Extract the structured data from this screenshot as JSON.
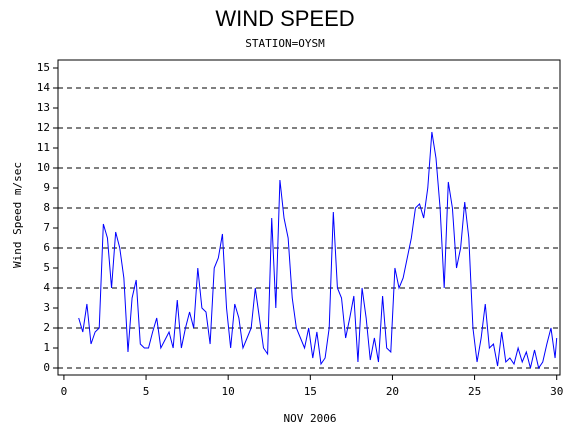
{
  "chart_data": {
    "type": "line",
    "title": "WIND SPEED",
    "subtitle": "STATION=OYSM",
    "y_label": "Wind Speed m/sec",
    "x_label": "NOV 2006",
    "x": [
      0.9,
      1.15,
      1.4,
      1.65,
      1.9,
      2.15,
      2.4,
      2.65,
      2.9,
      3.15,
      3.4,
      3.65,
      3.9,
      4.15,
      4.4,
      4.65,
      4.9,
      5.15,
      5.4,
      5.65,
      5.9,
      6.15,
      6.4,
      6.65,
      6.9,
      7.15,
      7.4,
      7.65,
      7.9,
      8.15,
      8.4,
      8.65,
      8.9,
      9.15,
      9.4,
      9.65,
      9.9,
      10.15,
      10.4,
      10.65,
      10.9,
      11.15,
      11.4,
      11.65,
      11.9,
      12.15,
      12.4,
      12.65,
      12.9,
      13.15,
      13.4,
      13.65,
      13.9,
      14.15,
      14.4,
      14.65,
      14.9,
      15.15,
      15.4,
      15.65,
      15.9,
      16.15,
      16.4,
      16.65,
      16.9,
      17.15,
      17.4,
      17.65,
      17.9,
      18.15,
      18.4,
      18.65,
      18.9,
      19.15,
      19.4,
      19.65,
      19.9,
      20.15,
      20.4,
      20.65,
      20.9,
      21.15,
      21.4,
      21.65,
      21.9,
      22.15,
      22.4,
      22.65,
      22.9,
      23.15,
      23.4,
      23.65,
      23.9,
      24.15,
      24.4,
      24.65,
      24.9,
      25.15,
      25.4,
      25.65,
      25.9,
      26.15,
      26.4,
      26.65,
      26.9,
      27.15,
      27.4,
      27.65,
      27.9,
      28.15,
      28.4,
      28.65,
      28.9,
      29.15,
      29.4,
      29.65,
      29.9,
      30.0
    ],
    "series": [
      {
        "color": "#0000ff",
        "values": [
          2.5,
          1.8,
          3.2,
          1.2,
          1.8,
          2.0,
          7.2,
          6.5,
          4.0,
          6.8,
          6.0,
          4.5,
          0.8,
          3.5,
          4.4,
          1.2,
          1.0,
          1.0,
          1.8,
          2.5,
          1.0,
          1.4,
          1.8,
          1.0,
          3.4,
          1.0,
          2.0,
          2.8,
          2.0,
          5.0,
          3.0,
          2.8,
          1.2,
          5.0,
          5.5,
          6.7,
          3.0,
          1.0,
          3.2,
          2.5,
          1.0,
          1.5,
          2.0,
          4.0,
          2.5,
          1.0,
          0.7,
          7.5,
          3.0,
          9.4,
          7.5,
          6.5,
          3.5,
          2.0,
          1.5,
          1.0,
          2.0,
          0.5,
          1.8,
          0.2,
          0.5,
          2.0,
          7.8,
          4.0,
          3.5,
          1.5,
          2.5,
          3.6,
          0.3,
          4.0,
          2.5,
          0.4,
          1.5,
          0.3,
          3.6,
          1.0,
          0.8,
          5.0,
          4.0,
          4.5,
          5.5,
          6.5,
          8.0,
          8.2,
          7.5,
          9.0,
          11.8,
          10.5,
          8.0,
          4.0,
          9.3,
          8.0,
          5.0,
          6.0,
          8.3,
          6.5,
          2.0,
          0.3,
          1.5,
          3.2,
          1.0,
          1.2,
          0.1,
          1.8,
          0.3,
          0.5,
          0.2,
          1.0,
          0.3,
          0.8,
          0.0,
          0.9,
          0.0,
          0.3,
          1.2,
          2.0,
          0.5,
          1.5
        ]
      }
    ],
    "xlim": [
      -0.36,
      30.2
    ],
    "ylim": [
      -0.35,
      15.4
    ],
    "xticks": [
      0,
      5,
      10,
      15,
      20,
      25,
      30
    ],
    "yticks": [
      0,
      1,
      2,
      3,
      4,
      5,
      6,
      7,
      8,
      9,
      10,
      11,
      12,
      13,
      14,
      15
    ],
    "grid_lines": [
      0,
      2,
      4,
      6,
      8,
      10,
      12,
      14
    ]
  }
}
